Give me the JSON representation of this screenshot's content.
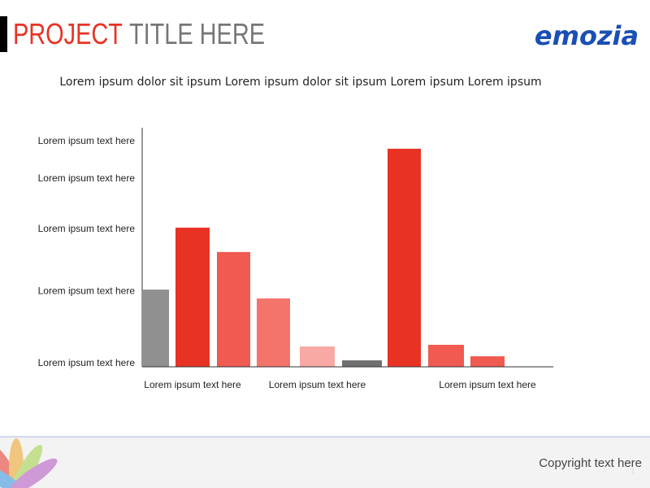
{
  "header": {
    "title_accent": "PROJECT",
    "title_rest": "TITLE HERE",
    "logo": "emozia"
  },
  "subtitle": "Lorem ipsum dolor sit ipsum Lorem ipsum dolor sit ipsum Lorem ipsum Lorem ipsum",
  "footer": {
    "copyright": "Copyright text here",
    "page": "1"
  },
  "chart_data": {
    "type": "bar",
    "categories": [
      null,
      "Lorem ipsum text here",
      null,
      null,
      "Lorem ipsum text here",
      null,
      null,
      null,
      "Lorem ipsum text here"
    ],
    "values": [
      32.3,
      58.2,
      48.0,
      28.6,
      8.5,
      2.7,
      91.2,
      9.2,
      4.4
    ],
    "colors": [
      "#909090",
      "#e83224",
      "#f05a50",
      "#f4746c",
      "#f9a9a4",
      "#707070",
      "#e83224",
      "#f05a50",
      "#f05a50"
    ],
    "ylim": [
      0,
      100
    ],
    "yticks": [
      {
        "value": 1.4,
        "label": "Lorem ipsum text here"
      },
      {
        "value": 31.6,
        "label": "Lorem ipsum text here"
      },
      {
        "value": 57.5,
        "label": "Lorem ipsum text here"
      },
      {
        "value": 78.6,
        "label": "Lorem ipsum text here"
      },
      {
        "value": 94.2,
        "label": "Lorem ipsum text here"
      }
    ],
    "grid": false
  }
}
